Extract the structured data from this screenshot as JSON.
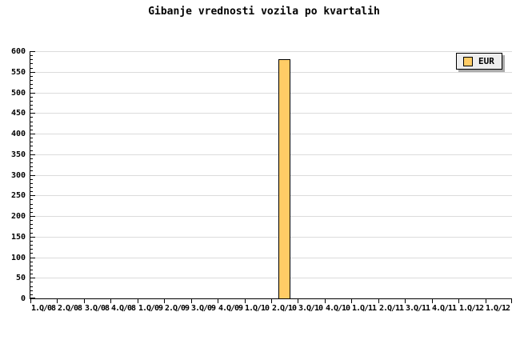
{
  "chart_data": {
    "type": "bar",
    "title": "Gibanje vrednosti vozila po kvartalih",
    "xlabel": "",
    "ylabel": "",
    "categories": [
      "1.Q/08",
      "2.Q/08",
      "3.Q/08",
      "4.Q/08",
      "1.Q/09",
      "2.Q/09",
      "3.Q/09",
      "4.Q/09",
      "1.Q/10",
      "2.Q/10",
      "3.Q/10",
      "4.Q/10",
      "1.Q/11",
      "2.Q/11",
      "3.Q/11",
      "4.Q/11",
      "1.Q/12",
      "1.Q/12"
    ],
    "series": [
      {
        "name": "EUR",
        "color": "#FFCC66",
        "values": [
          null,
          null,
          null,
          null,
          null,
          null,
          null,
          null,
          null,
          580,
          null,
          null,
          null,
          null,
          null,
          null,
          null,
          null
        ]
      }
    ],
    "ylim": [
      0,
      600
    ],
    "ytick_interval": 50,
    "yminor_interval": 10,
    "grid": true,
    "legend_position": "top-right",
    "colors": {
      "bar_fill": "#FFCC66",
      "bar_border": "#000000",
      "gridline": "#DCDCDC",
      "axis": "#000000",
      "legend_bg": "#EEEEEE",
      "legend_shadow": "#AAAAAA",
      "background": "#FFFFFF",
      "text": "#000000"
    }
  }
}
